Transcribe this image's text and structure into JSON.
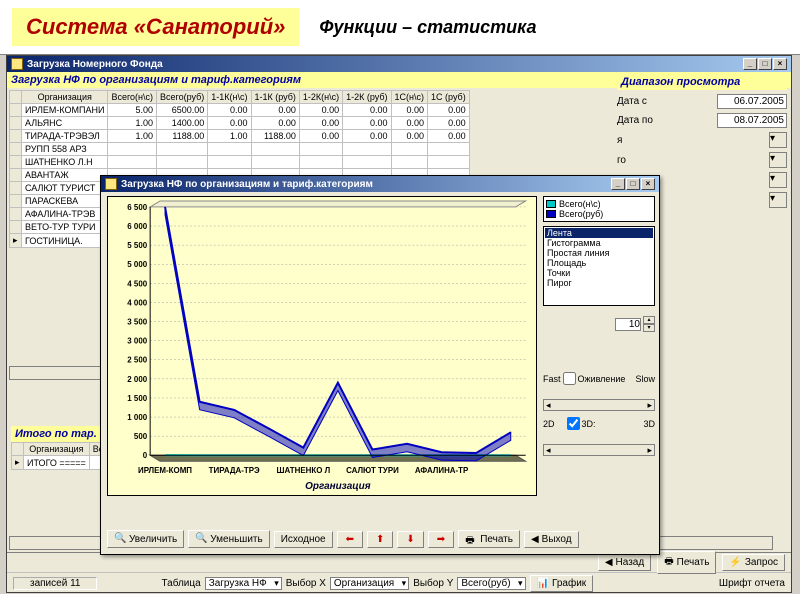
{
  "header": {
    "title": "Система «Санаторий»",
    "subtitle": "Функции – статистика"
  },
  "main_window": {
    "title": "Загрузка Номерного Фонда",
    "section": "Загрузка НФ по организациям и тариф.категориям",
    "columns": [
      "Организация",
      "Всего(н\\с)",
      "Всего(руб)",
      "1-1К(н\\с)",
      "1-1К  (руб)",
      "1-2К(н\\с)",
      "1-2К  (руб)",
      "1С(н\\с)",
      "1С (руб)"
    ],
    "rows": [
      {
        "org": "ИРЛЕМ-КОМПАНИ",
        "v": [
          "5.00",
          "6500.00",
          "0.00",
          "0.00",
          "0.00",
          "0.00",
          "0.00",
          "0.00"
        ]
      },
      {
        "org": "АЛЬЯНС",
        "v": [
          "1.00",
          "1400.00",
          "0.00",
          "0.00",
          "0.00",
          "0.00",
          "0.00",
          "0.00"
        ]
      },
      {
        "org": "ТИРАДА-ТРЭВЭЛ",
        "v": [
          "1.00",
          "1188.00",
          "1.00",
          "1188.00",
          "0.00",
          "0.00",
          "0.00",
          "0.00"
        ]
      },
      {
        "org": "РУПП 558 АРЗ",
        "v": [
          "",
          "",
          "",
          "",
          "",
          "",
          "",
          ""
        ]
      },
      {
        "org": "ШАТНЕНКО Л.Н",
        "v": [
          "",
          "",
          "",
          "",
          "",
          "",
          "",
          ""
        ]
      },
      {
        "org": "АВАНТАЖ",
        "v": [
          "",
          "",
          "",
          "",
          "",
          "",
          "",
          ""
        ]
      },
      {
        "org": "САЛЮТ ТУРИСТ",
        "v": [
          "",
          "",
          "",
          "",
          "",
          "",
          "",
          ""
        ]
      },
      {
        "org": "ПАРАСКЕВА",
        "v": [
          "",
          "",
          "",
          "",
          "",
          "",
          "",
          ""
        ]
      },
      {
        "org": "АФАЛИНА-ТРЭВ",
        "v": [
          "",
          "",
          "",
          "",
          "",
          "",
          "",
          ""
        ]
      },
      {
        "org": "ВЕТО-ТУР ТУРИ",
        "v": [
          "",
          "",
          "",
          "",
          "",
          "",
          "",
          ""
        ]
      },
      {
        "org": "ГОСТИНИЦА.",
        "v": [
          "",
          "",
          "",
          "",
          "",
          "",
          "",
          ""
        ]
      }
    ],
    "summary_title": "Итого по тар.",
    "summary_cols": [
      "Организация",
      "Всего"
    ],
    "summary_row": "ИТОГО ====="
  },
  "range_panel": {
    "title": "Диапазон просмотра",
    "from_label": "Дата с",
    "from_value": "06.07.2005",
    "to_label": "Дата по",
    "to_value": "08.07.2005",
    "stubs": [
      "я",
      "го",
      "ра",
      "мы"
    ]
  },
  "chart_window": {
    "title": "Загрузка НФ по организациям и тариф.категориям",
    "chart": {
      "type": "line",
      "background": "#ffffcc",
      "grid_color": "#a0a0a0",
      "series": [
        {
          "name": "Всего(н\\с)",
          "color": "#00c8c8",
          "values": [
            5,
            1,
            1,
            1,
            0.2,
            1,
            0.1,
            0.3,
            0.1,
            0.1,
            0.5
          ]
        },
        {
          "name": "Всего(руб)",
          "color": "#0000c0",
          "values": [
            6500,
            1400,
            1188,
            700,
            200,
            1900,
            150,
            300,
            80,
            60,
            600
          ]
        }
      ],
      "y_ticks": [
        0,
        500,
        1000,
        1500,
        2000,
        2500,
        3000,
        3500,
        4000,
        4500,
        5000,
        5500,
        6000,
        6500
      ],
      "y_max": 6500,
      "x_labels": [
        "ИРЛЕМ-КОМП",
        "ТИРАДА-ТРЭ",
        "ШАТНЕНКО Л",
        "САЛЮТ ТУРИ",
        "АФАЛИНА-ТР"
      ],
      "x_title": "Организация"
    },
    "legend": [
      {
        "label": "Всего(н\\с)",
        "color": "#00c8c8"
      },
      {
        "label": "Всего(руб)",
        "color": "#0000c0"
      }
    ],
    "chart_types": [
      "Лента",
      "Гистограмма",
      "Простая линия",
      "Площадь",
      "Точки",
      "Пирог"
    ],
    "selected_type": "Лента",
    "spin_value": "10",
    "anim_label": "Оживление",
    "fast_label": "Fast",
    "slow_label": "Slow",
    "dim_2d": "2D",
    "dim_3d": "3D:",
    "dim_check": true,
    "buttons": {
      "zoom_in": "Увеличить",
      "zoom_out": "Уменьшить",
      "reset": "Исходное",
      "print": "Печать",
      "exit": "Выход"
    }
  },
  "statusbar": {
    "back": "Назад",
    "print": "Печать",
    "query": "Запрос",
    "records": "записей 11",
    "table_label": "Таблица",
    "table_value": "Загрузка НФ",
    "x_label": "Выбор X",
    "x_value": "Организация",
    "y_label": "Выбор Y",
    "y_value": "Всего(руб)",
    "graph": "График",
    "font": "Шрифт отчета"
  }
}
